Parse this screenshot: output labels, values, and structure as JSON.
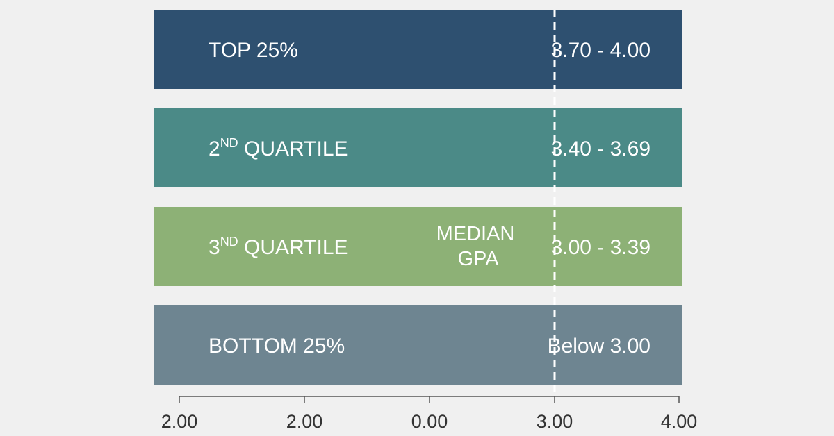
{
  "chart_data": {
    "type": "bar",
    "orientation": "horizontal",
    "title": "",
    "xlabel": "",
    "ylabel": "",
    "categories": [
      {
        "label": "TOP 25%",
        "ordinal": "",
        "ordinal_suffix": "",
        "suffix_text": "",
        "range": "3.70 - 4.00",
        "gpa_min": 3.7,
        "gpa_max": 4.0,
        "color": "#2e5070"
      },
      {
        "label": "",
        "ordinal": "2",
        "ordinal_suffix": "ND",
        "suffix_text": " QUARTILE",
        "range": "3.40 - 3.69",
        "gpa_min": 3.4,
        "gpa_max": 3.69,
        "color": "#4b8a87"
      },
      {
        "label": "",
        "ordinal": "3",
        "ordinal_suffix": "ND",
        "suffix_text": " QUARTILE",
        "range": "3.00 - 3.39",
        "gpa_min": 3.0,
        "gpa_max": 3.39,
        "color": "#8db176"
      },
      {
        "label": "BOTTOM 25%",
        "ordinal": "",
        "ordinal_suffix": "",
        "suffix_text": "",
        "range": "Below 3.00",
        "gpa_min": null,
        "gpa_max": 3.0,
        "color": "#6e8591"
      }
    ],
    "x_ticks": [
      "2.00",
      "2.00",
      "0.00",
      "3.00",
      "4.00"
    ],
    "reference_line": {
      "value": 3.0,
      "label_line1": "MEDIAN",
      "label_line2": "GPA",
      "style": "dashed",
      "color": "#ffffff"
    },
    "grid": false,
    "legend": "none"
  }
}
